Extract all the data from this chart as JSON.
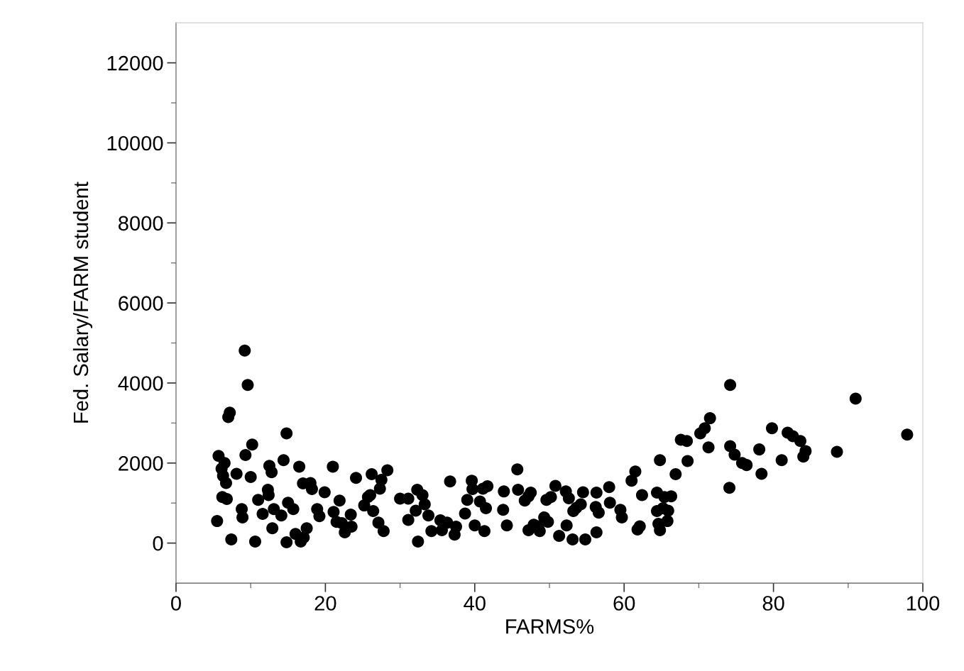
{
  "chart_data": {
    "type": "scatter",
    "xlabel": "FARMS%",
    "ylabel": "Fed. Salary/FARM student",
    "xlim": [
      0,
      100
    ],
    "ylim": [
      -1000,
      13000
    ],
    "xticks": [
      0,
      {
        "value": 10,
        "label": null
      },
      20,
      {
        "value": 30,
        "label": null
      },
      40,
      {
        "value": 50,
        "label": null
      },
      60,
      {
        "value": 70,
        "label": null
      },
      80,
      {
        "value": 90,
        "label": null
      },
      100
    ],
    "yticks": [
      0,
      {
        "value": 1000,
        "label": null
      },
      2000,
      {
        "value": 3000,
        "label": null
      },
      4000,
      {
        "value": 5000,
        "label": null
      },
      6000,
      {
        "value": 7000,
        "label": null
      },
      8000,
      {
        "value": 9000,
        "label": null
      },
      10000,
      {
        "value": 11000,
        "label": null
      },
      12000
    ],
    "grid": false,
    "marker": "circle",
    "series": [
      {
        "color": "#000000",
        "x": [
          5.5,
          5.7,
          6.1,
          6.2,
          6.3,
          6.5,
          6.7,
          6.8,
          7.0,
          7.2,
          7.4,
          8.1,
          8.8,
          8.9,
          9.2,
          9.3,
          9.6,
          10.0,
          10.2,
          10.6,
          11.0,
          11.6,
          12.3,
          12.4,
          12.5,
          12.8,
          12.9,
          13.1,
          14.1,
          14.4,
          14.8,
          14.8,
          15.0,
          15.7,
          16.0,
          16.5,
          16.7,
          17.1,
          17.0,
          17.5,
          18.0,
          18.2,
          18.9,
          19.2,
          19.9,
          21.0,
          21.1,
          21.5,
          21.9,
          22.2,
          22.6,
          23.4,
          23.5,
          24.1,
          25.2,
          25.7,
          26.0,
          26.2,
          26.4,
          27.1,
          27.3,
          27.5,
          27.8,
          28.3,
          30.0,
          31.1,
          31.1,
          32.3,
          32.1,
          32.4,
          33.0,
          33.3,
          33.8,
          34.2,
          35.4,
          35.6,
          36.3,
          36.7,
          37.3,
          37.5,
          38.7,
          39.0,
          39.6,
          39.7,
          40.0,
          40.7,
          41.1,
          41.3,
          41.5,
          41.7,
          43.9,
          43.8,
          44.3,
          45.7,
          45.8,
          46.7,
          47.2,
          47.2,
          47.5,
          47.9,
          48.5,
          48.7,
          49.3,
          49.6,
          49.8,
          50.2,
          50.8,
          51.3,
          52.2,
          52.3,
          52.6,
          53.1,
          53.2,
          53.6,
          54.2,
          54.5,
          54.8,
          56.2,
          56.3,
          56.3,
          56.6,
          58.0,
          58.1,
          59.5,
          59.7,
          61.0,
          61.5,
          61.8,
          62.1,
          62.4,
          64.4,
          64.4,
          64.8,
          64.8,
          64.6,
          65.2,
          65.4,
          65.8,
          65.9,
          66.3,
          66.9,
          67.6,
          68.4,
          68.5,
          70.2,
          70.8,
          71.3,
          71.5,
          74.1,
          74.2,
          74.2,
          74.8,
          75.8,
          76.4,
          78.1,
          78.4,
          79.8,
          81.1,
          81.9,
          82.6,
          83.6,
          84.3,
          84.0,
          88.5,
          91.0,
          97.9
        ],
        "values": [
          550,
          2180,
          1860,
          1150,
          1680,
          2000,
          1500,
          1100,
          3150,
          3260,
          90,
          1730,
          850,
          640,
          4810,
          2200,
          3950,
          1650,
          2460,
          40,
          1080,
          730,
          1330,
          1200,
          1930,
          1770,
          370,
          850,
          690,
          2070,
          2740,
          20,
          1010,
          850,
          230,
          1910,
          40,
          140,
          1490,
          370,
          1500,
          1350,
          850,
          670,
          1270,
          1910,
          780,
          530,
          1060,
          500,
          270,
          710,
          410,
          1630,
          940,
          1150,
          1200,
          1720,
          800,
          510,
          1360,
          1580,
          300,
          1820,
          1110,
          1110,
          580,
          1330,
          810,
          40,
          1200,
          970,
          690,
          300,
          570,
          320,
          510,
          1540,
          210,
          410,
          740,
          1080,
          1560,
          1350,
          440,
          1040,
          1360,
          300,
          870,
          1420,
          1290,
          830,
          440,
          1840,
          1330,
          1060,
          1170,
          320,
          1260,
          460,
          420,
          300,
          640,
          1080,
          530,
          1150,
          1430,
          180,
          1290,
          440,
          1120,
          90,
          800,
          880,
          970,
          1270,
          90,
          900,
          1260,
          270,
          760,
          1400,
          1010,
          830,
          640,
          1560,
          1790,
          340,
          420,
          1200,
          1260,
          800,
          2070,
          320,
          480,
          870,
          1150,
          550,
          810,
          1170,
          1720,
          2580,
          2550,
          2050,
          2740,
          2870,
          2390,
          3120,
          1380,
          3950,
          2420,
          2210,
          2000,
          1950,
          2340,
          1730,
          2870,
          2070,
          2760,
          2670,
          2550,
          2300,
          2160,
          2280,
          3610,
          2710
        ]
      }
    ]
  }
}
